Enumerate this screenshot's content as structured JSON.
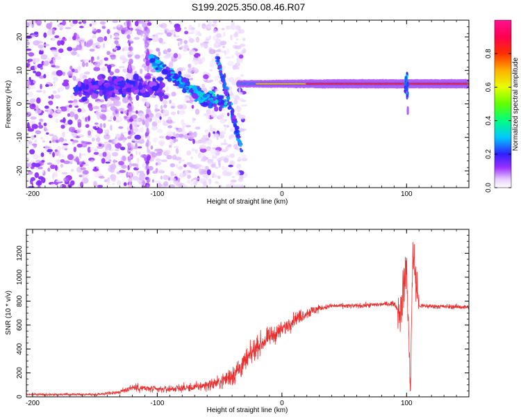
{
  "title": "S199.2025.350.08.46.R07",
  "chart_data": [
    {
      "type": "heatmap",
      "xlabel": "Height of straight line (km)",
      "ylabel": "Frequency (Hz)",
      "xlim": [
        -205,
        150
      ],
      "ylim": [
        -25,
        25
      ],
      "x_ticks": [
        -200,
        -100,
        0,
        100
      ],
      "y_ticks": [
        -20,
        -10,
        0,
        10,
        20
      ],
      "colorbar": {
        "label": "Normalized spectral amplitude",
        "range": [
          0,
          1
        ],
        "ticks": [
          0,
          0.2,
          0.4,
          0.6,
          0.8
        ],
        "tick_labels": [
          "0.0",
          "0.2",
          "0.4",
          "0.6",
          "0.8"
        ],
        "colormap": "rainbow (white-lavender-purple-blue-cyan-green-yellow-red-magenta)"
      },
      "features": {
        "steady_band_frequency_hz": 6,
        "steady_band_start_km": -35,
        "scattered_noise_range_km": [
          -205,
          -30
        ],
        "diagonal_trend": [
          [
            -100,
            12
          ],
          [
            -65,
            2
          ],
          [
            -45,
            0
          ]
        ],
        "spikes_near_km": 100
      }
    },
    {
      "type": "line",
      "xlabel": "Height of straight line (km)",
      "ylabel": "SNR (10 * v/v)",
      "xlim": [
        -205,
        150
      ],
      "ylim": [
        0,
        1400
      ],
      "x_ticks": [
        -200,
        -100,
        0,
        100
      ],
      "y_ticks": [
        0,
        200,
        400,
        600,
        800,
        1000,
        1200
      ],
      "series_color": "#e83030",
      "envelope": {
        "x": [
          -205,
          -150,
          -130,
          -120,
          -100,
          -70,
          -50,
          -40,
          -30,
          -20,
          -10,
          0,
          10,
          20,
          30,
          40,
          60,
          90,
          95,
          100,
          103,
          105,
          110,
          150
        ],
        "y": [
          20,
          20,
          40,
          80,
          60,
          80,
          120,
          180,
          280,
          420,
          500,
          560,
          650,
          700,
          740,
          760,
          760,
          780,
          700,
          1100,
          60,
          1200,
          760,
          750
        ]
      }
    }
  ]
}
